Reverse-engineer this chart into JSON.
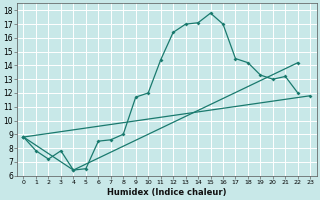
{
  "xlabel": "Humidex (Indice chaleur)",
  "bg_color": "#c8e8e8",
  "grid_color": "#ffffff",
  "line_color": "#1a7a6e",
  "xlim": [
    -0.5,
    23.5
  ],
  "ylim": [
    6,
    18.5
  ],
  "xticks": [
    0,
    1,
    2,
    3,
    4,
    5,
    6,
    7,
    8,
    9,
    10,
    11,
    12,
    13,
    14,
    15,
    16,
    17,
    18,
    19,
    20,
    21,
    22,
    23
  ],
  "yticks": [
    6,
    7,
    8,
    9,
    10,
    11,
    12,
    13,
    14,
    15,
    16,
    17,
    18
  ],
  "line1_x": [
    0,
    1,
    2,
    3,
    4,
    5,
    6,
    7,
    8,
    9,
    10,
    11,
    12,
    13,
    14,
    15,
    16,
    17,
    18,
    19,
    20,
    21,
    22
  ],
  "line1_y": [
    8.8,
    7.8,
    7.2,
    7.8,
    6.4,
    6.5,
    8.5,
    8.6,
    9.0,
    11.7,
    12.0,
    14.4,
    16.4,
    17.0,
    17.1,
    17.8,
    17.0,
    14.5,
    14.2,
    13.3,
    13.0,
    13.2,
    12.0
  ],
  "line2_x": [
    0,
    4,
    22
  ],
  "line2_y": [
    8.8,
    6.4,
    14.2
  ],
  "line3_x": [
    0,
    23
  ],
  "line3_y": [
    8.8,
    11.8
  ]
}
